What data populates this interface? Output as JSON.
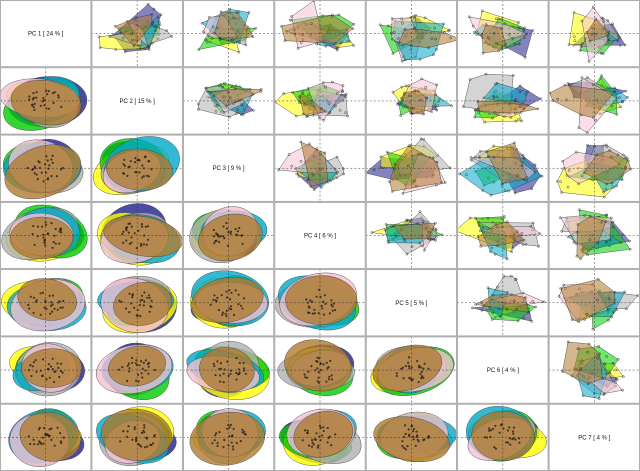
{
  "chart_data": {
    "type": "scatter",
    "title": "",
    "variables": [
      {
        "label": "PC 1 [ 24 % ]"
      },
      {
        "label": "PC 2 [ 15 % ]"
      },
      {
        "label": "PC 3 [ 9 % ]"
      },
      {
        "label": "PC 4 [ 6 % ]"
      },
      {
        "label": "PC 5 [ 5 % ]"
      },
      {
        "label": "PC 6 [ 4 % ]"
      },
      {
        "label": "PC 7 [ 4 % ]"
      }
    ],
    "upper_panels": "convex hulls per group",
    "lower_panels": "confidence ellipses per group",
    "group_colors": [
      "#1e1e8c",
      "#ffff00",
      "#00cc00",
      "#b0b0b0",
      "#00a8c8",
      "#f4c2d4",
      "#b07a30"
    ],
    "grid": false,
    "legend": "none"
  }
}
